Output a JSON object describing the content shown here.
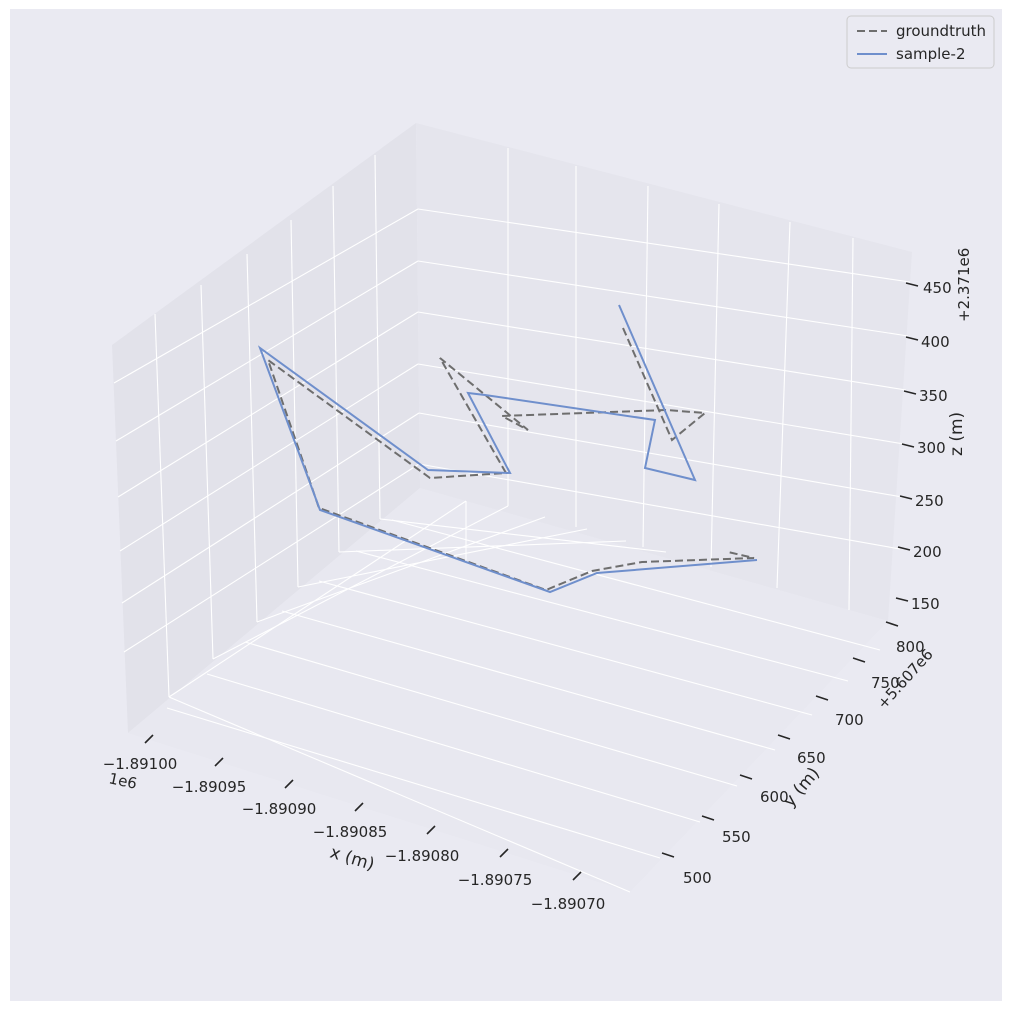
{
  "chart_data": {
    "type": "line",
    "projection": "3d",
    "xlabel": "x (m)",
    "ylabel": "y (m)",
    "zlabel": "z (m)",
    "x_offset_label": "1e6",
    "y_offset_label": "+5.607e6",
    "z_offset_label": "+2.371e6",
    "x_ticks": [
      "−1.89100",
      "−1.89095",
      "−1.89090",
      "−1.89085",
      "−1.89080",
      "−1.89075",
      "−1.89070"
    ],
    "y_ticks": [
      "500",
      "550",
      "600",
      "650",
      "700",
      "750",
      "800"
    ],
    "z_ticks": [
      "150",
      "200",
      "250",
      "300",
      "350",
      "400",
      "450"
    ],
    "grid": true,
    "legend_position": "upper-right",
    "series": [
      {
        "name": "groundtruth",
        "style": "dashed",
        "color": "#6e6e6e",
        "x": [
          -1891074,
          -1891082,
          -1891094,
          -1891094,
          -1891080,
          -1891080,
          -1891074,
          -1891073,
          -1891073,
          -1891075,
          -1891071,
          -1891071
        ],
        "y": [
          5607600,
          5607640,
          5607670,
          5607680,
          5607760,
          5607770,
          5607780,
          5607550,
          5607600,
          5607640,
          5607720,
          5607740
        ],
        "z": [
          2371395,
          2371363,
          2371290,
          2371180,
          2371190,
          2371200,
          2371262,
          2371198,
          2371252,
          2371278,
          2371380,
          2371160
        ]
      },
      {
        "name": "sample-2",
        "style": "solid",
        "color": "#6f8fcc",
        "x": [
          -1891073,
          -1891075,
          -1891072,
          -1891073,
          -1891080,
          -1891080,
          -1891074,
          -1891082,
          -1891094,
          -1891095
        ],
        "y": [
          5607720,
          5607650,
          5607620,
          5607600,
          5607740,
          5607760,
          5607590,
          5607640,
          5607670,
          5607680
        ],
        "z": [
          2371390,
          2371270,
          2371275,
          2371355,
          2371255,
          2371200,
          2371182,
          2371285,
          2371395,
          2371175
        ]
      }
    ]
  }
}
